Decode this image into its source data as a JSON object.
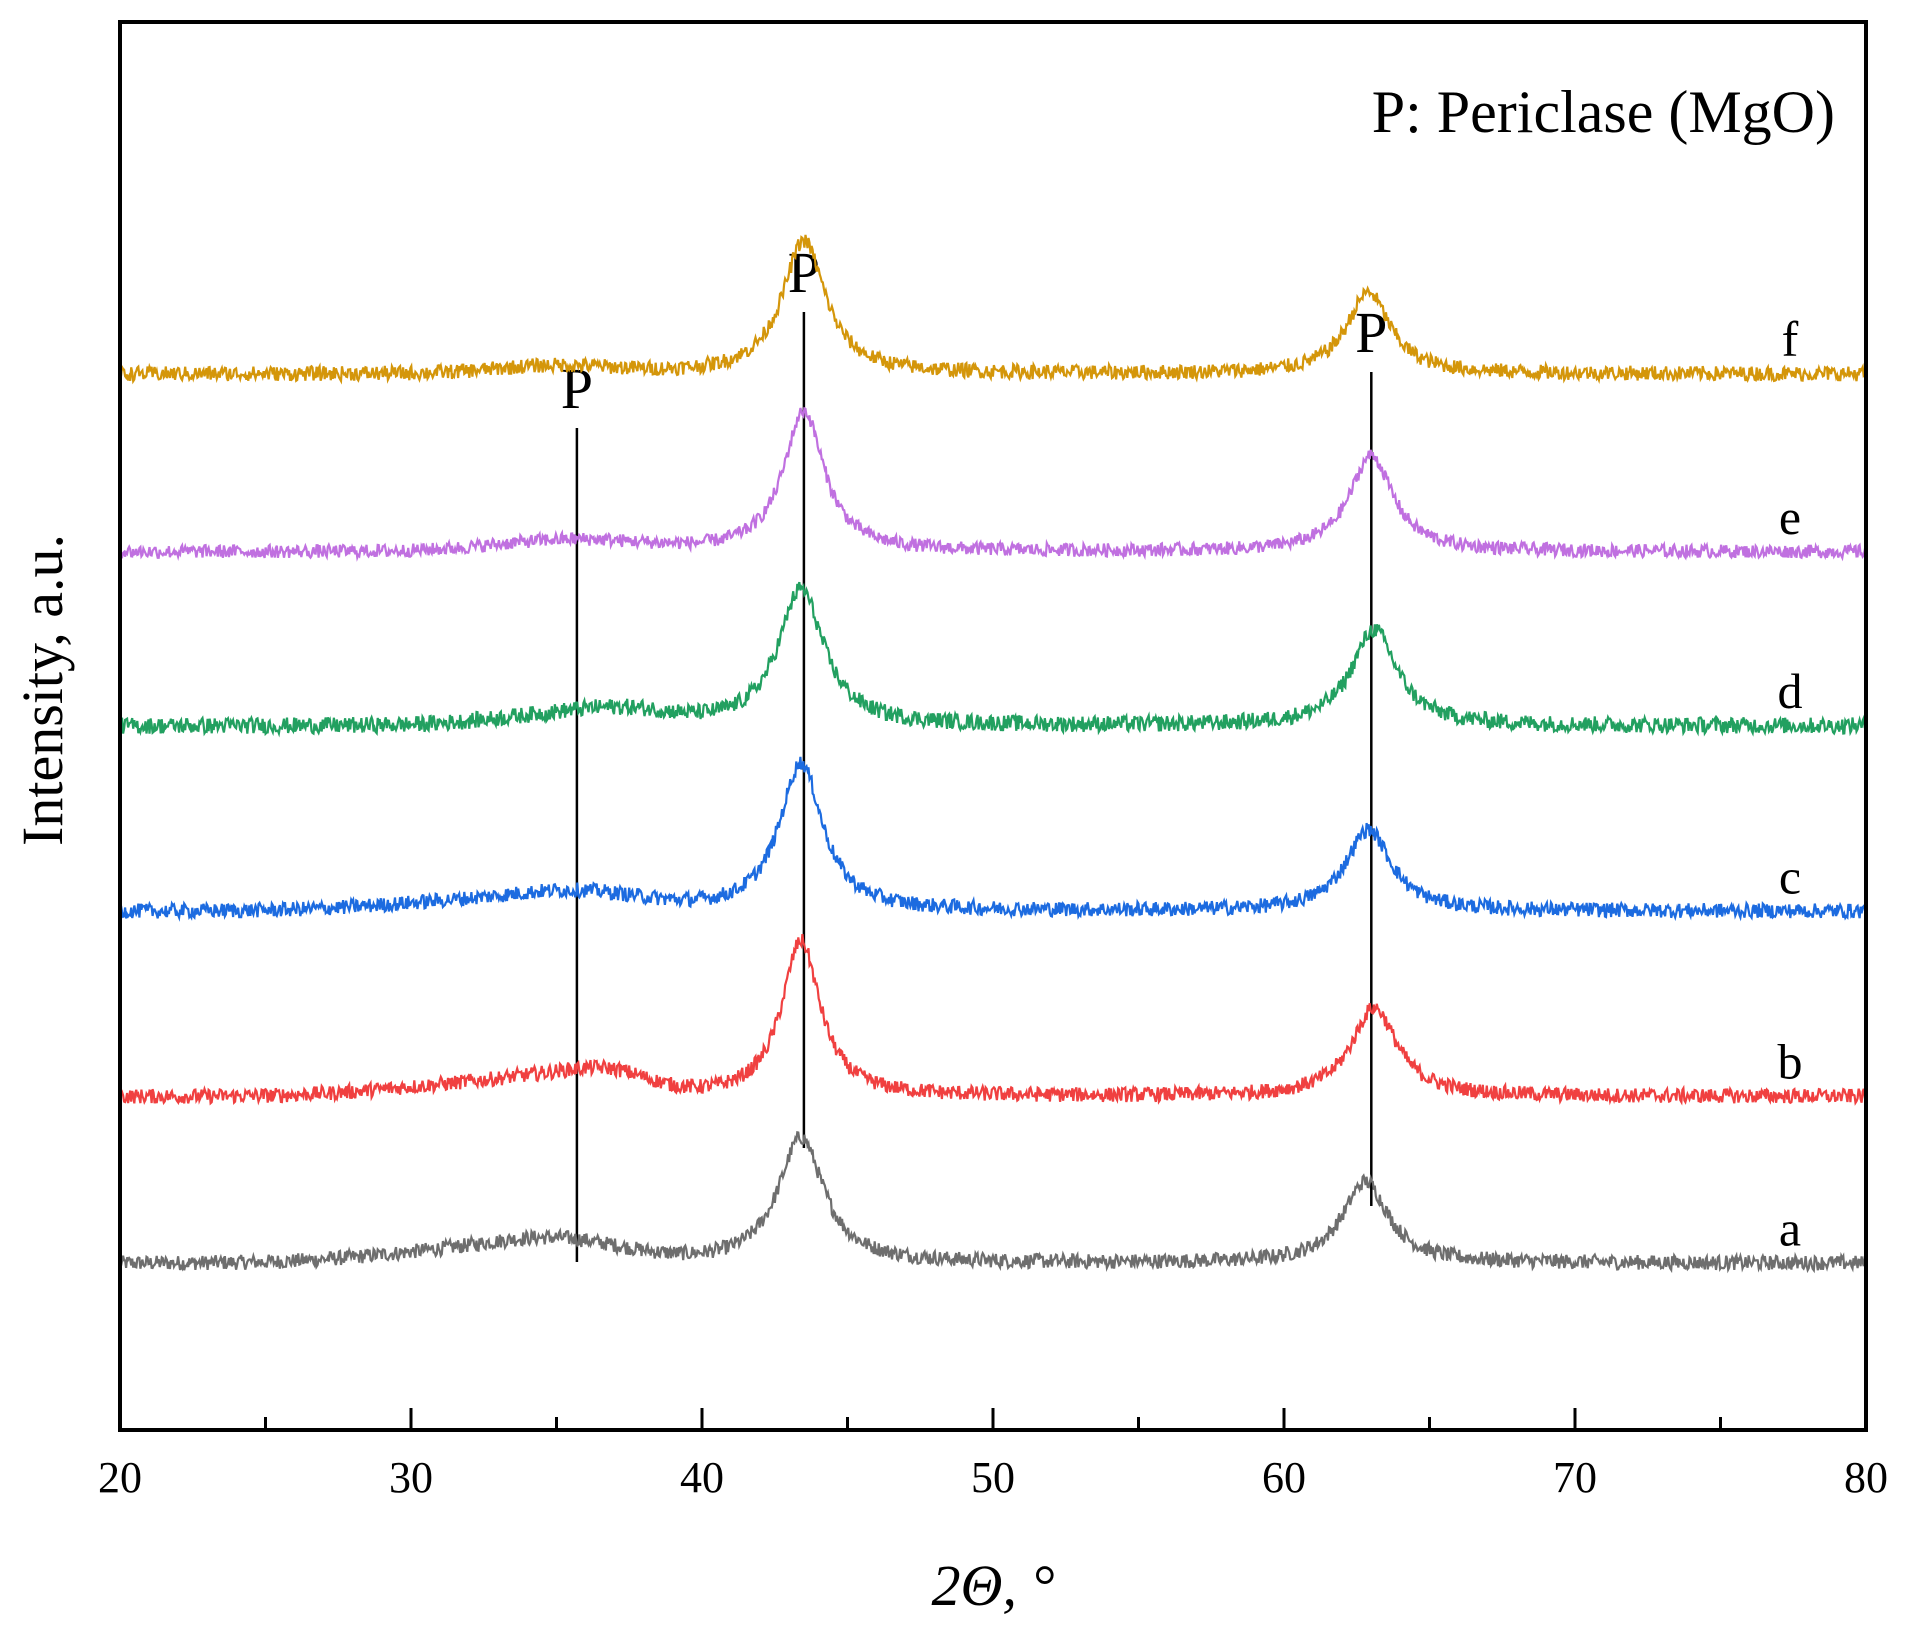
{
  "chart_data": {
    "type": "line",
    "title": "",
    "xlabel": "2Θ, °",
    "ylabel": "Intensity, a.u.",
    "xlim": [
      20,
      80
    ],
    "xticks": [
      "20",
      "30",
      "40",
      "50",
      "60",
      "70",
      "80"
    ],
    "grid": false,
    "note": "P: Periclase (MgO)",
    "reference_lines": [
      {
        "label": "P",
        "x": 35.7
      },
      {
        "label": "P",
        "x": 43.5
      },
      {
        "label": "P",
        "x": 63.0
      }
    ],
    "series": [
      {
        "name": "a",
        "color": "#6e6e6e",
        "baseline": 1.0,
        "noise": 0.02,
        "bumps": [
          {
            "x": 31.5,
            "h": 0.03,
            "w": 3.0
          },
          {
            "x": 35.2,
            "h": 0.05,
            "w": 2.2
          }
        ],
        "peaks": [
          {
            "x": 43.4,
            "h": 0.34,
            "w": 0.95
          },
          {
            "x": 62.8,
            "h": 0.22,
            "w": 0.95
          }
        ]
      },
      {
        "name": "b",
        "color": "#f04040",
        "baseline": 1.45,
        "noise": 0.02,
        "bumps": [
          {
            "x": 32.0,
            "h": 0.03,
            "w": 3.0
          },
          {
            "x": 35.5,
            "h": 0.04,
            "w": 2.0
          },
          {
            "x": 37.0,
            "h": 0.03,
            "w": 1.2
          }
        ],
        "peaks": [
          {
            "x": 43.4,
            "h": 0.42,
            "w": 0.8
          },
          {
            "x": 63.1,
            "h": 0.24,
            "w": 0.95
          }
        ]
      },
      {
        "name": "c",
        "color": "#1c6be0",
        "baseline": 1.95,
        "noise": 0.02,
        "bumps": [
          {
            "x": 33.0,
            "h": 0.03,
            "w": 3.5
          },
          {
            "x": 36.0,
            "h": 0.03,
            "w": 2.0
          }
        ],
        "peaks": [
          {
            "x": 43.4,
            "h": 0.4,
            "w": 0.9
          },
          {
            "x": 62.9,
            "h": 0.22,
            "w": 0.95
          }
        ]
      },
      {
        "name": "d",
        "color": "#22a060",
        "baseline": 2.45,
        "noise": 0.022,
        "bumps": [
          {
            "x": 35.5,
            "h": 0.03,
            "w": 2.5
          },
          {
            "x": 37.5,
            "h": 0.02,
            "w": 1.5
          }
        ],
        "peaks": [
          {
            "x": 43.4,
            "h": 0.37,
            "w": 0.95
          },
          {
            "x": 63.1,
            "h": 0.26,
            "w": 0.95
          }
        ]
      },
      {
        "name": "e",
        "color": "#c070e0",
        "baseline": 2.92,
        "noise": 0.018,
        "bumps": [
          {
            "x": 35.5,
            "h": 0.03,
            "w": 2.5
          }
        ],
        "peaks": [
          {
            "x": 43.5,
            "h": 0.38,
            "w": 0.85
          },
          {
            "x": 63.0,
            "h": 0.26,
            "w": 0.9
          }
        ]
      },
      {
        "name": "f",
        "color": "#d4960a",
        "baseline": 3.4,
        "noise": 0.02,
        "bumps": [
          {
            "x": 35.0,
            "h": 0.02,
            "w": 2.0
          }
        ],
        "peaks": [
          {
            "x": 43.5,
            "h": 0.36,
            "w": 0.9
          },
          {
            "x": 62.9,
            "h": 0.22,
            "w": 0.9
          }
        ]
      }
    ]
  }
}
